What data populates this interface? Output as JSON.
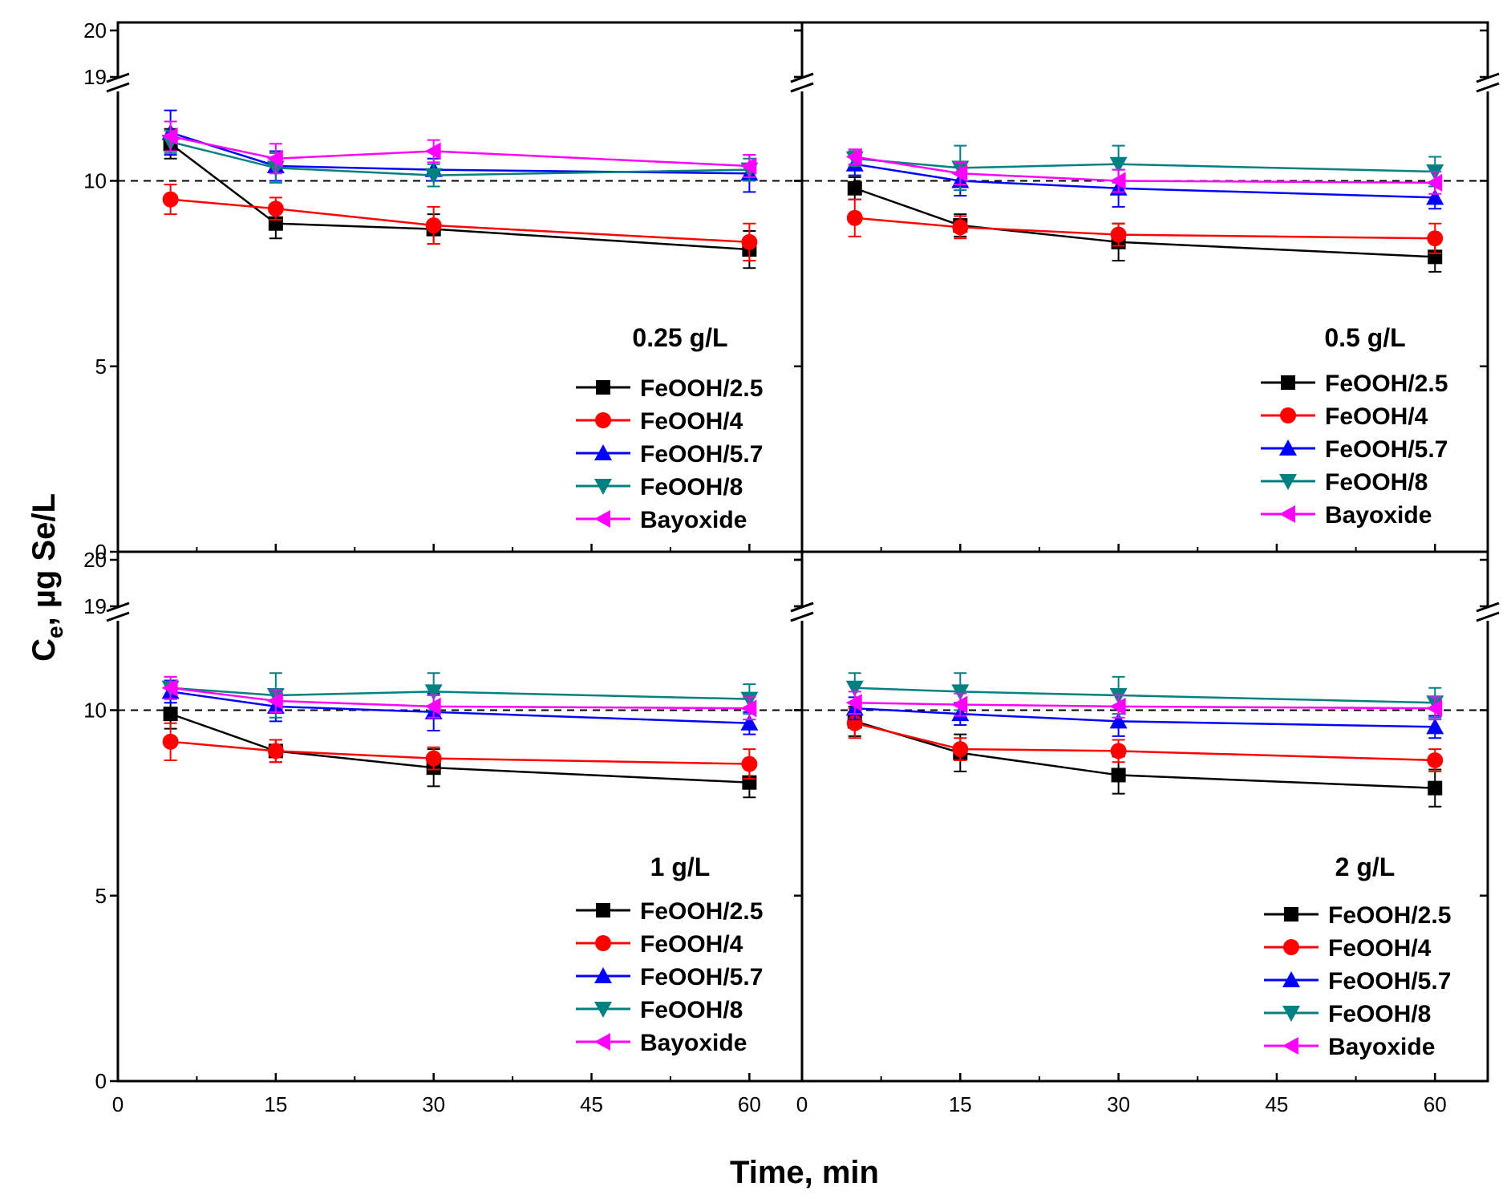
{
  "chart_data": {
    "type": "line",
    "figure": {
      "xlabel": "Time, min",
      "ylabel_main": "C",
      "ylabel_sub": "e",
      "ylabel_rest": ", µg Se/L",
      "reference_line": {
        "y": 10,
        "style": "dashed"
      }
    },
    "x_axis": {
      "xlim": [
        0,
        65
      ],
      "ticks": [
        0,
        15,
        30,
        45,
        60
      ],
      "tick_labels": [
        "0",
        "15",
        "30",
        "45",
        "60"
      ]
    },
    "y_axis": {
      "ylim": [
        0,
        20
      ],
      "axis_break": [
        12.8,
        19
      ],
      "ticks": [
        0,
        5,
        10,
        19,
        20
      ],
      "tick_labels": [
        "0",
        "5",
        "10",
        "19",
        "20"
      ]
    },
    "x": [
      5,
      15,
      30,
      60
    ],
    "legend_labels": [
      "FeOOH/2.5",
      "FeOOH/4",
      "FeOOH/5.7",
      "FeOOH/8",
      "Bayoxide"
    ],
    "colors": [
      "#000000",
      "#ff0000",
      "#0000ff",
      "#008080",
      "#ff00ff"
    ],
    "markers": [
      "square",
      "circle",
      "triangle-up",
      "triangle-down",
      "triangle-left"
    ],
    "panels": [
      {
        "title": "0.25 g/L",
        "series": [
          {
            "name": "FeOOH/2.5",
            "values": [
              11.0,
              8.85,
              8.7,
              8.15
            ],
            "errors": [
              0.4,
              0.4,
              0.4,
              0.5
            ]
          },
          {
            "name": "FeOOH/4",
            "values": [
              9.5,
              9.25,
              8.8,
              8.35
            ],
            "errors": [
              0.4,
              0.3,
              0.5,
              0.5
            ]
          },
          {
            "name": "FeOOH/5.7",
            "values": [
              11.3,
              10.4,
              10.3,
              10.2
            ],
            "errors": [
              0.6,
              0.4,
              0.3,
              0.5
            ]
          },
          {
            "name": "FeOOH/8",
            "values": [
              11.05,
              10.35,
              10.15,
              10.3
            ],
            "errors": [
              0.3,
              0.4,
              0.3,
              0.3
            ]
          },
          {
            "name": "Bayoxide",
            "values": [
              11.2,
              10.6,
              10.8,
              10.4
            ],
            "errors": [
              0.4,
              0.4,
              0.3,
              0.3
            ]
          }
        ]
      },
      {
        "title": "0.5 g/L",
        "series": [
          {
            "name": "FeOOH/2.5",
            "values": [
              9.8,
              8.8,
              8.35,
              7.95
            ],
            "errors": [
              0.3,
              0.3,
              0.5,
              0.4
            ]
          },
          {
            "name": "FeOOH/4",
            "values": [
              9.0,
              8.75,
              8.55,
              8.45
            ],
            "errors": [
              0.5,
              0.3,
              0.3,
              0.4
            ]
          },
          {
            "name": "FeOOH/5.7",
            "values": [
              10.45,
              10.0,
              9.8,
              9.55
            ],
            "errors": [
              0.3,
              0.4,
              0.5,
              0.3
            ]
          },
          {
            "name": "FeOOH/8",
            "values": [
              10.6,
              10.35,
              10.45,
              10.25
            ],
            "errors": [
              0.2,
              0.6,
              0.5,
              0.4
            ]
          },
          {
            "name": "Bayoxide",
            "values": [
              10.65,
              10.2,
              10.0,
              9.95
            ],
            "errors": [
              0.2,
              0.3,
              0.3,
              0.3
            ]
          }
        ]
      },
      {
        "title": "1 g/L",
        "series": [
          {
            "name": "FeOOH/2.5",
            "values": [
              9.9,
              8.9,
              8.45,
              8.05
            ],
            "errors": [
              0.4,
              0.3,
              0.5,
              0.4
            ]
          },
          {
            "name": "FeOOH/4",
            "values": [
              9.15,
              8.9,
              8.7,
              8.55
            ],
            "errors": [
              0.5,
              0.3,
              0.3,
              0.4
            ]
          },
          {
            "name": "FeOOH/5.7",
            "values": [
              10.5,
              10.1,
              9.95,
              9.65
            ],
            "errors": [
              0.3,
              0.4,
              0.5,
              0.3
            ]
          },
          {
            "name": "FeOOH/8",
            "values": [
              10.6,
              10.4,
              10.5,
              10.3
            ],
            "errors": [
              0.3,
              0.6,
              0.5,
              0.4
            ]
          },
          {
            "name": "Bayoxide",
            "values": [
              10.6,
              10.25,
              10.1,
              10.05
            ],
            "errors": [
              0.3,
              0.3,
              0.3,
              0.3
            ]
          }
        ]
      },
      {
        "title": "2 g/L",
        "series": [
          {
            "name": "FeOOH/2.5",
            "values": [
              9.7,
              8.85,
              8.25,
              7.9
            ],
            "errors": [
              0.4,
              0.5,
              0.5,
              0.5
            ]
          },
          {
            "name": "FeOOH/4",
            "values": [
              9.65,
              8.95,
              8.9,
              8.65
            ],
            "errors": [
              0.4,
              0.3,
              0.3,
              0.3
            ]
          },
          {
            "name": "FeOOH/5.7",
            "values": [
              10.05,
              9.9,
              9.7,
              9.55
            ],
            "errors": [
              0.3,
              0.3,
              0.4,
              0.3
            ]
          },
          {
            "name": "FeOOH/8",
            "values": [
              10.6,
              10.5,
              10.4,
              10.2
            ],
            "errors": [
              0.4,
              0.5,
              0.5,
              0.4
            ]
          },
          {
            "name": "Bayoxide",
            "values": [
              10.2,
              10.15,
              10.1,
              10.05
            ],
            "errors": [
              0.3,
              0.3,
              0.3,
              0.3
            ]
          }
        ]
      }
    ]
  }
}
